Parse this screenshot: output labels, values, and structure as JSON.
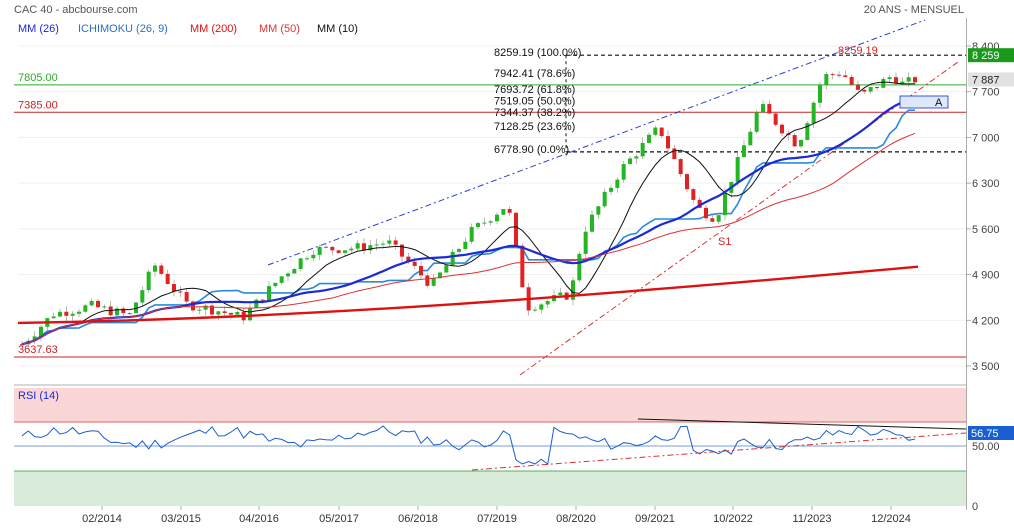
{
  "header": {
    "title": "CAC 40 - abcbourse.com",
    "period": "20 ANS - MENSUEL"
  },
  "legend": [
    {
      "label": "MM (26)",
      "color": "#1a2ad6"
    },
    {
      "label": "ICHIMOKU (26, 9)",
      "color": "#2a6fc9"
    },
    {
      "label": "MM (200)",
      "color": "#dd1111"
    },
    {
      "label": "MM (50)",
      "color": "#dd3333"
    },
    {
      "label": "MM (10)",
      "color": "#111111"
    }
  ],
  "price_axis": {
    "ticks": [
      "8 400",
      "7 700",
      "7 000",
      "6 300",
      "5 600",
      "4 900",
      "4 200",
      "3 500"
    ],
    "tick_values": [
      8400,
      7700,
      7000,
      6300,
      5600,
      4900,
      4200,
      3500
    ],
    "current_label": "8 259",
    "current_color": "#1a9a1a",
    "last_label": "7 887"
  },
  "levels": [
    {
      "label": "7805.00",
      "value": 7805,
      "color": "#2eaa2e"
    },
    {
      "label": "7385.00",
      "value": 7385,
      "color": "#cc2222"
    },
    {
      "label": "3637.63",
      "value": 3637.63,
      "color": "#cc2222"
    }
  ],
  "fibonacci": [
    {
      "label": "8259.19  (100.0%)",
      "value": 8259.19
    },
    {
      "label": "7942.41  (78.6%)",
      "value": 7942.41
    },
    {
      "label": "7693.72  (61.8%)",
      "value": 7693.72
    },
    {
      "label": "7519.05  (50.0%)",
      "value": 7519.05
    },
    {
      "label": "7344.37  (38.2%)",
      "value": 7344.37
    },
    {
      "label": "7128.25  (23.6%)",
      "value": 7128.25
    },
    {
      "label": "6778.90  (0.0%)",
      "value": 6778.9
    }
  ],
  "annotations": {
    "high_label": "8259.19",
    "s1_label": "S1",
    "a_label": "A"
  },
  "rsi": {
    "label": "RSI (14)",
    "value_label": "56.75",
    "mid_label": "50.00",
    "zero_label": "0",
    "overbought": 70,
    "oversold": 30
  },
  "x_axis": {
    "labels": [
      "02/2014",
      "03/2015",
      "04/2016",
      "05/2017",
      "06/2018",
      "07/2019",
      "08/2020",
      "09/2021",
      "10/2022",
      "11/2023",
      "12/2024"
    ]
  },
  "chart_data": {
    "type": "candlestick",
    "title": "CAC 40 - abcbourse.com",
    "period": "20 ANS - MENSUEL",
    "ylim": [
      3300,
      8600
    ],
    "series_close": [
      {
        "x": "2013-06",
        "y": 3740
      },
      {
        "x": "2013-12",
        "y": 4300
      },
      {
        "x": "2014-06",
        "y": 4420
      },
      {
        "x": "2014-12",
        "y": 4270
      },
      {
        "x": "2015-04",
        "y": 5050
      },
      {
        "x": "2015-09",
        "y": 4450
      },
      {
        "x": "2016-02",
        "y": 4350
      },
      {
        "x": "2016-06",
        "y": 4240
      },
      {
        "x": "2016-12",
        "y": 4860
      },
      {
        "x": "2017-05",
        "y": 5280
      },
      {
        "x": "2017-12",
        "y": 5310
      },
      {
        "x": "2018-05",
        "y": 5400
      },
      {
        "x": "2018-12",
        "y": 4730
      },
      {
        "x": "2019-06",
        "y": 5540
      },
      {
        "x": "2019-12",
        "y": 5980
      },
      {
        "x": "2020-03",
        "y": 4400
      },
      {
        "x": "2020-10",
        "y": 4600
      },
      {
        "x": "2020-12",
        "y": 5550
      },
      {
        "x": "2021-06",
        "y": 6510
      },
      {
        "x": "2021-12",
        "y": 7150
      },
      {
        "x": "2022-06",
        "y": 5920
      },
      {
        "x": "2022-09",
        "y": 5760
      },
      {
        "x": "2023-04",
        "y": 7490
      },
      {
        "x": "2023-10",
        "y": 6880
      },
      {
        "x": "2024-02",
        "y": 7930
      },
      {
        "x": "2024-05",
        "y": 8000
      },
      {
        "x": "2024-08",
        "y": 7630
      },
      {
        "x": "2025-01",
        "y": 7950
      },
      {
        "x": "2025-03",
        "y": 7790
      },
      {
        "x": "2025-04",
        "y": 7887
      }
    ],
    "ma_200_range": [
      4160,
      5020
    ],
    "rsi_last": 56.75
  }
}
